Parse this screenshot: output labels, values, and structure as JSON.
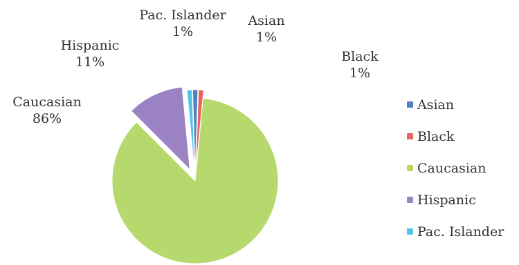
{
  "chart_data": {
    "type": "pie",
    "title": "",
    "slices": [
      {
        "label": "Asian",
        "value": 1,
        "value_label": "1%",
        "color": "#4f81bd"
      },
      {
        "label": "Black",
        "value": 1,
        "value_label": "1%",
        "color": "#e8675c"
      },
      {
        "label": "Caucasian",
        "value": 86,
        "value_label": "86%",
        "color": "#b5d96c"
      },
      {
        "label": "Hispanic",
        "value": 11,
        "value_label": "11%",
        "color": "#9b82c2"
      },
      {
        "label": "Pac. Islander",
        "value": 1,
        "value_label": "1%",
        "color": "#56c4e8"
      }
    ],
    "legend": [
      "Asian",
      "Black",
      "Caucasian",
      "Hispanic",
      "Pac. Islander"
    ],
    "legend_position": "right",
    "exploded": true
  }
}
